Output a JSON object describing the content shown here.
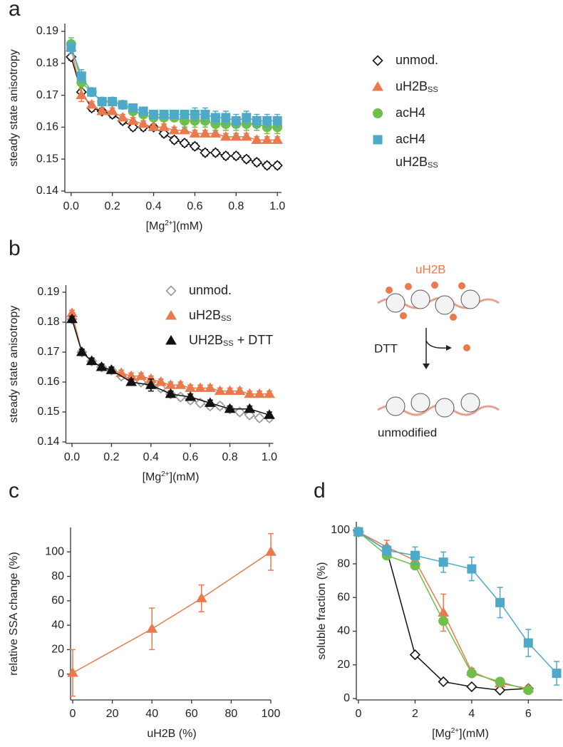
{
  "chart_data": [
    {
      "type": "line",
      "panel_label": "a",
      "ylabel": [
        {
          "text": "steady state anisotropy"
        }
      ],
      "xlabel": [
        {
          "text": "[Mg"
        },
        {
          "text": "2+",
          "sup": true
        },
        {
          "text": "](mM)"
        }
      ],
      "xlim": [
        -0.02,
        1.02
      ],
      "ylim": [
        0.14,
        0.19
      ],
      "xticks": [
        {
          "value": 0,
          "label": "0.0"
        },
        0.2,
        0.4,
        0.6,
        0.8,
        {
          "value": 1,
          "label": "1.0"
        }
      ],
      "yticks": [
        0.14,
        0.15,
        0.16,
        0.17,
        0.18,
        0.19
      ],
      "legend": "right-outside",
      "x": [
        0,
        0.05,
        0.1,
        0.15,
        0.2,
        0.25,
        0.3,
        0.35,
        0.4,
        0.45,
        0.5,
        0.55,
        0.6,
        0.65,
        0.7,
        0.75,
        0.8,
        0.85,
        0.9,
        0.95,
        1
      ],
      "series": [
        {
          "name": [
            {
              "text": "unmod."
            }
          ],
          "marker": "diamond",
          "color": "#111111",
          "marker_fill": "#ffffff",
          "values": [
            0.182,
            0.171,
            0.166,
            0.165,
            0.164,
            0.162,
            0.16,
            0.16,
            0.16,
            0.158,
            0.156,
            0.155,
            0.154,
            0.152,
            0.152,
            0.151,
            0.151,
            0.15,
            0.149,
            0.148,
            0.148
          ],
          "errors": [
            0.001,
            0.001,
            0.001,
            0.001,
            0.001,
            0.001,
            0.001,
            0.001,
            0.001,
            0.001,
            0.001,
            0.001,
            0.001,
            0.001,
            0.001,
            0.001,
            0.001,
            0.001,
            0.001,
            0.001,
            0.001
          ]
        },
        {
          "name": [
            {
              "text": "uH2B"
            },
            {
              "text": "SS",
              "sub": true
            }
          ],
          "marker": "triangle",
          "color": "#ea7a4e",
          "marker_fill": "#ea7a4e",
          "values": [
            0.185,
            0.17,
            0.167,
            0.165,
            0.165,
            0.163,
            0.162,
            0.161,
            0.16,
            0.16,
            0.159,
            0.159,
            0.158,
            0.158,
            0.158,
            0.157,
            0.157,
            0.157,
            0.156,
            0.156,
            0.156
          ],
          "errors": [
            0.002,
            0.002,
            0.001,
            0.001,
            0.001,
            0.001,
            0.001,
            0.001,
            0.001,
            0.001,
            0.001,
            0.001,
            0.001,
            0.001,
            0.001,
            0.001,
            0.001,
            0.001,
            0.001,
            0.001,
            0.001
          ]
        },
        {
          "name": [
            {
              "text": "acH4"
            }
          ],
          "marker": "circle",
          "color": "#6fbf4a",
          "marker_fill": "#6fbf4a",
          "values": [
            0.186,
            0.174,
            0.171,
            0.168,
            0.168,
            0.167,
            0.165,
            0.164,
            0.163,
            0.163,
            0.163,
            0.162,
            0.162,
            0.162,
            0.161,
            0.161,
            0.161,
            0.161,
            0.161,
            0.16,
            0.16
          ],
          "errors": [
            0.002,
            0.002,
            0.001,
            0.001,
            0.001,
            0.001,
            0.001,
            0.001,
            0.001,
            0.001,
            0.001,
            0.002,
            0.002,
            0.002,
            0.002,
            0.002,
            0.002,
            0.002,
            0.002,
            0.002,
            0.002
          ]
        },
        {
          "name": [
            {
              "text": "acH4"
            },
            {
              "text": "uH2B",
              "newline": true
            },
            {
              "text": "SS",
              "sub": true
            }
          ],
          "marker": "square",
          "color": "#4fa9c9",
          "marker_fill": "#4fa9c9",
          "values": [
            0.185,
            0.176,
            0.171,
            0.168,
            0.168,
            0.167,
            0.166,
            0.165,
            0.164,
            0.164,
            0.164,
            0.164,
            0.164,
            0.164,
            0.163,
            0.163,
            0.162,
            0.163,
            0.162,
            0.162,
            0.162
          ],
          "errors": [
            0.002,
            0.002,
            0.001,
            0.001,
            0.001,
            0.001,
            0.001,
            0.001,
            0.001,
            0.001,
            0.001,
            0.001,
            0.002,
            0.002,
            0.002,
            0.002,
            0.002,
            0.002,
            0.002,
            0.002,
            0.002
          ]
        }
      ]
    },
    {
      "type": "line",
      "panel_label": "b",
      "ylabel": [
        {
          "text": "steady state anisotropy"
        }
      ],
      "xlabel": [
        {
          "text": "[Mg"
        },
        {
          "text": "2+",
          "sup": true
        },
        {
          "text": "](mM)"
        }
      ],
      "xlim": [
        -0.02,
        1.02
      ],
      "ylim": [
        0.14,
        0.19
      ],
      "xticks": [
        {
          "value": 0,
          "label": "0.0"
        },
        0.2,
        0.4,
        0.6,
        0.8,
        {
          "value": 1,
          "label": "1.0"
        }
      ],
      "yticks": [
        0.14,
        0.15,
        0.16,
        0.17,
        0.18,
        0.19
      ],
      "legend": "top-right",
      "x": [
        0,
        0.05,
        0.1,
        0.15,
        0.2,
        0.25,
        0.3,
        0.35,
        0.4,
        0.45,
        0.5,
        0.55,
        0.6,
        0.65,
        0.7,
        0.75,
        0.8,
        0.85,
        0.9,
        0.95,
        1
      ],
      "series": [
        {
          "name": [
            {
              "text": "unmod."
            }
          ],
          "marker": "diamond",
          "color": "#9a9a9a",
          "marker_fill": "#ffffff",
          "values": [
            0.181,
            0.17,
            0.167,
            0.165,
            0.164,
            0.162,
            0.161,
            0.16,
            0.159,
            0.158,
            0.156,
            0.155,
            0.154,
            0.153,
            0.152,
            0.152,
            0.151,
            0.15,
            0.149,
            0.148,
            0.148
          ],
          "errors": [
            0.001,
            0.001,
            0.001,
            0.001,
            0.001,
            0.001,
            0.001,
            0.001,
            0.001,
            0.001,
            0.001,
            0.001,
            0.001,
            0.001,
            0.001,
            0.001,
            0.001,
            0.001,
            0.001,
            0.001,
            0.001
          ]
        },
        {
          "name": [
            {
              "text": "uH2B"
            },
            {
              "text": "SS",
              "sub": true
            }
          ],
          "marker": "triangle",
          "color": "#ea7a4e",
          "marker_fill": "#ea7a4e",
          "values": [
            0.183,
            0.17,
            0.167,
            0.165,
            0.164,
            0.163,
            0.162,
            0.162,
            0.161,
            0.16,
            0.159,
            0.159,
            0.158,
            0.158,
            0.158,
            0.157,
            0.157,
            0.157,
            0.156,
            0.156,
            0.156
          ],
          "errors": [
            0.001,
            0.001,
            0.001,
            0.001,
            0.001,
            0.001,
            0.001,
            0.001,
            0.001,
            0.001,
            0.001,
            0.001,
            0.001,
            0.001,
            0.001,
            0.001,
            0.001,
            0.001,
            0.001,
            0.001,
            0.001
          ]
        },
        {
          "name": [
            {
              "text": "UH2B"
            },
            {
              "text": "SS",
              "sub": true
            },
            {
              "text": " + DTT"
            }
          ],
          "marker": "triangle",
          "color": "#111111",
          "marker_fill": "#111111",
          "x": [
            0,
            0.05,
            0.1,
            0.15,
            0.2,
            0.3,
            0.4,
            0.5,
            0.6,
            0.7,
            0.8,
            0.9,
            1
          ],
          "values": [
            0.181,
            0.17,
            0.167,
            0.165,
            0.164,
            0.16,
            0.159,
            0.156,
            0.155,
            0.153,
            0.151,
            0.151,
            0.149
          ],
          "errors": [
            0.001,
            0.001,
            0.001,
            0.001,
            0.001,
            0.001,
            0.002,
            0.001,
            0.001,
            0.001,
            0.001,
            0.001,
            0.001
          ]
        }
      ]
    },
    {
      "type": "line",
      "panel_label": "c",
      "ylabel": [
        {
          "text": "relative SSA change (%)"
        }
      ],
      "xlabel": [
        {
          "text": "uH2B (%)"
        }
      ],
      "xlim": [
        0,
        100
      ],
      "ylim": [
        -20,
        120
      ],
      "xticks": [
        0,
        20,
        40,
        60,
        80,
        100
      ],
      "yticks": [
        0,
        20,
        40,
        60,
        80,
        100
      ],
      "series": [
        {
          "marker": "triangle",
          "color": "#ea7a4e",
          "marker_fill": "#ea7a4e",
          "x": [
            0,
            40,
            65,
            100
          ],
          "values": [
            1,
            37,
            62,
            100
          ],
          "errors": [
            19,
            17,
            11,
            15
          ]
        }
      ]
    },
    {
      "type": "line",
      "panel_label": "d",
      "ylabel": [
        {
          "text": "soluble fraction (%)"
        }
      ],
      "xlabel": [
        {
          "text": "[Mg"
        },
        {
          "text": "2+",
          "sup": true
        },
        {
          "text": "](mM)"
        }
      ],
      "xlim": [
        0,
        7.2
      ],
      "ylim": [
        0,
        105
      ],
      "xticks": [
        0,
        2,
        4,
        6
      ],
      "yticks": [
        0,
        20,
        40,
        60,
        80,
        100
      ],
      "series": [
        {
          "marker": "diamond",
          "color": "#111111",
          "marker_fill": "#ffffff",
          "x": [
            0,
            1,
            2,
            3,
            4,
            5,
            6
          ],
          "values": [
            99,
            88,
            26,
            10,
            7,
            5,
            6
          ],
          "errors": [
            1,
            2,
            1,
            1,
            1,
            1,
            1
          ]
        },
        {
          "marker": "triangle",
          "color": "#ea7a4e",
          "marker_fill": "#ea7a4e",
          "x": [
            0,
            1,
            2,
            3,
            4,
            5,
            6
          ],
          "values": [
            99,
            90,
            82,
            51,
            16,
            9,
            6
          ],
          "errors": [
            1,
            4,
            2,
            11,
            2,
            2,
            1
          ]
        },
        {
          "marker": "circle",
          "color": "#6fbf4a",
          "marker_fill": "#6fbf4a",
          "x": [
            0,
            1,
            2,
            3,
            4,
            5,
            6
          ],
          "values": [
            99,
            85,
            79,
            46,
            15,
            10,
            5
          ],
          "errors": [
            1,
            2,
            1,
            2,
            2,
            2,
            1
          ]
        },
        {
          "marker": "square",
          "color": "#4fa9c9",
          "marker_fill": "#4fa9c9",
          "x": [
            0,
            1,
            2,
            3,
            4,
            5,
            6,
            7
          ],
          "values": [
            99,
            88,
            85,
            81,
            77,
            57,
            33,
            15
          ],
          "errors": [
            1,
            3,
            5,
            6,
            7,
            9,
            8,
            7
          ]
        }
      ]
    }
  ],
  "diagram": {
    "top_label": "uH2B",
    "arrow_label": "DTT",
    "bottom_label": "unmodified"
  }
}
